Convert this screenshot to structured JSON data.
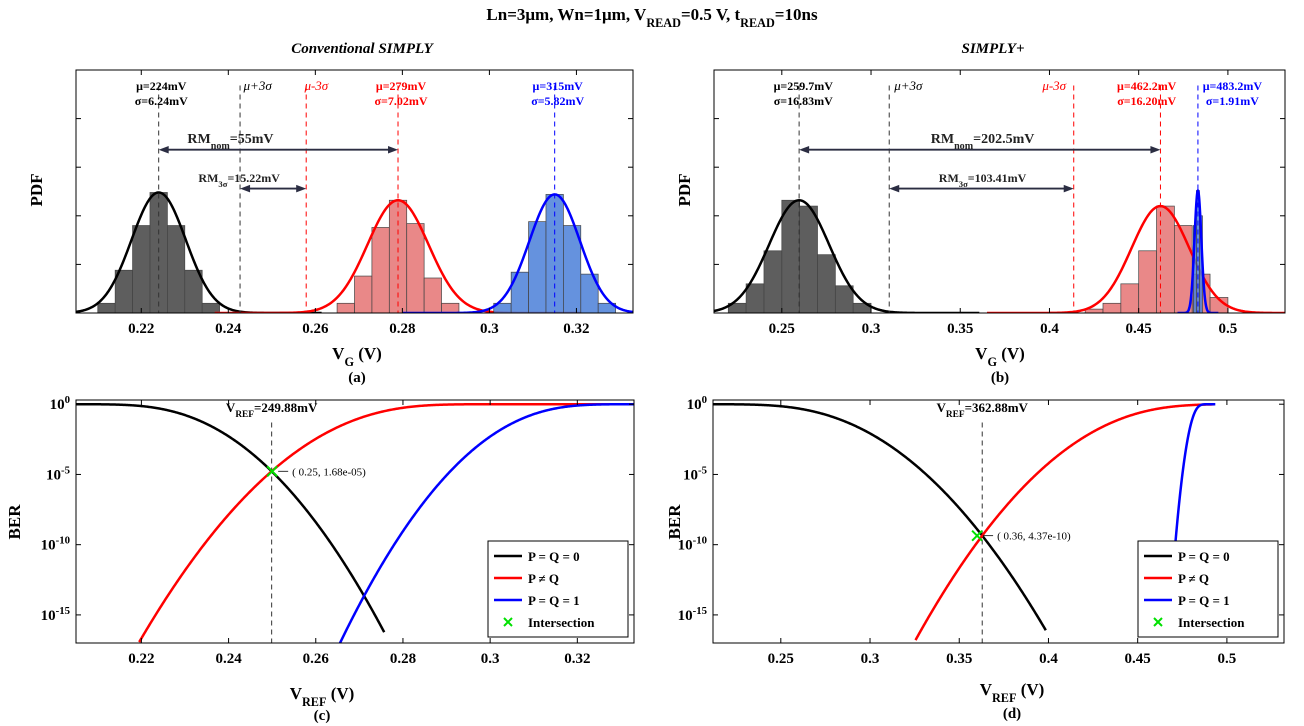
{
  "figure": {
    "main_title": {
      "parts": [
        {
          "t": "Ln=3μm, Wn=1μm,  V"
        },
        {
          "t": "READ",
          "sub": true
        },
        {
          "t": "=0.5 V, t"
        },
        {
          "t": "READ",
          "sub": true
        },
        {
          "t": "=10ns"
        }
      ]
    },
    "colors": {
      "black": "#000000",
      "red": "#ff0000",
      "blue": "#0000ff",
      "dark_hist": "#555555",
      "red_hist": "#e57373",
      "blue_hist": "#4a7fd8",
      "green": "#00e000",
      "arrow": "#2b2d42"
    }
  },
  "chart_data": [
    {
      "id": "a",
      "type": "histogram",
      "title": "Conventional SIMPLY",
      "panel_label": "(a)",
      "xlabel": {
        "parts": [
          {
            "t": "V"
          },
          {
            "t": "G",
            "sub": true
          },
          {
            "t": " (V)"
          }
        ]
      },
      "ylabel": "PDF",
      "xlim": [
        0.205,
        0.333
      ],
      "ylim": [
        0,
        1.25
      ],
      "xticks": [
        0.22,
        0.24,
        0.26,
        0.28,
        0.3,
        0.32
      ],
      "xtick_labels": [
        "0.22",
        "0.24",
        "0.26",
        "0.28",
        "0.3",
        "0.32"
      ],
      "yticks": [
        0.25,
        0.5,
        0.75,
        1.0
      ],
      "series": [
        {
          "color_key": "dark_hist",
          "mu": 0.224,
          "sigma": 0.00624,
          "x": [
            0.212,
            0.216,
            0.22,
            0.224,
            0.228,
            0.232,
            0.236
          ],
          "counts": [
            0.05,
            0.22,
            0.45,
            0.62,
            0.45,
            0.22,
            0.05
          ]
        },
        {
          "color_key": "red_hist",
          "mu": 0.279,
          "sigma": 0.00702,
          "x": [
            0.267,
            0.271,
            0.275,
            0.279,
            0.283,
            0.287,
            0.291
          ],
          "counts": [
            0.05,
            0.19,
            0.44,
            0.58,
            0.46,
            0.18,
            0.05
          ]
        },
        {
          "color_key": "blue_hist",
          "mu": 0.315,
          "sigma": 0.00582,
          "x": [
            0.303,
            0.307,
            0.311,
            0.315,
            0.319,
            0.323,
            0.327
          ],
          "counts": [
            0.05,
            0.21,
            0.47,
            0.61,
            0.45,
            0.2,
            0.05
          ]
        }
      ],
      "vlines": [
        {
          "x": 0.224,
          "color_key": "black",
          "label": "",
          "label_x": 0
        },
        {
          "x": 0.2427,
          "color_key": "black",
          "label": "μ+3σ",
          "label_x": 0.2435
        },
        {
          "x": 0.2579,
          "color_key": "red",
          "label": "μ-3σ",
          "label_x": 0.2575
        },
        {
          "x": 0.279,
          "color_key": "red",
          "label": "",
          "label_x": 0
        },
        {
          "x": 0.315,
          "color_key": "blue",
          "label": "",
          "label_x": 0
        }
      ],
      "stat_labels": [
        {
          "x": 0.2246,
          "color_key": "black",
          "mu": "μ=224mV",
          "sigma": "σ=6.24mV"
        },
        {
          "x": 0.2797,
          "color_key": "red",
          "mu": "μ=279mV",
          "sigma": "σ=7.02mV"
        },
        {
          "x": 0.3157,
          "color_key": "blue",
          "mu": "μ=315mV",
          "sigma": "σ=5.82mV"
        }
      ],
      "arrows": [
        {
          "x1": 0.224,
          "x2": 0.279,
          "y": 0.84,
          "label": {
            "parts": [
              {
                "t": "RM"
              },
              {
                "t": "nom",
                "sub": true
              },
              {
                "t": "=55mV"
              }
            ]
          },
          "label_x": 0.2405,
          "label_y": 0.875,
          "size": 14
        },
        {
          "x1": 0.2427,
          "x2": 0.2579,
          "y": 0.64,
          "label": {
            "parts": [
              {
                "t": "RM"
              },
              {
                "t": "3σ",
                "sub": true
              },
              {
                "t": "=15.22mV"
              }
            ]
          },
          "label_x": 0.2425,
          "label_y": 0.675,
          "size": 12
        }
      ]
    },
    {
      "id": "b",
      "type": "histogram",
      "title": "SIMPLY+",
      "panel_label": "(b)",
      "xlabel": {
        "parts": [
          {
            "t": "V"
          },
          {
            "t": "G",
            "sub": true
          },
          {
            "t": " (V)"
          }
        ]
      },
      "ylabel": "PDF",
      "xlim": [
        0.212,
        0.532
      ],
      "ylim": [
        0,
        1.25
      ],
      "xticks": [
        0.25,
        0.3,
        0.35,
        0.4,
        0.45,
        0.5
      ],
      "xtick_labels": [
        "0.25",
        "0.3",
        "0.35",
        "0.4",
        "0.45",
        "0.5"
      ],
      "yticks": [
        0.25,
        0.5,
        0.75,
        1.0
      ],
      "series": [
        {
          "color_key": "dark_hist",
          "mu": 0.2597,
          "sigma": 0.01683,
          "x": [
            0.225,
            0.235,
            0.245,
            0.255,
            0.265,
            0.275,
            0.285,
            0.295
          ],
          "counts": [
            0.05,
            0.15,
            0.32,
            0.58,
            0.55,
            0.3,
            0.14,
            0.05
          ]
        },
        {
          "color_key": "red_hist",
          "mu": 0.4622,
          "sigma": 0.0162,
          "x": [
            0.425,
            0.435,
            0.445,
            0.455,
            0.465,
            0.475,
            0.485,
            0.495
          ],
          "counts": [
            0.02,
            0.05,
            0.15,
            0.32,
            0.55,
            0.45,
            0.2,
            0.08
          ]
        },
        {
          "color_key": "blue_hist",
          "mu": 0.4832,
          "sigma": 0.00191,
          "x": [
            0.4815,
            0.4832,
            0.4849
          ],
          "counts": [
            0.45,
            0.63,
            0.5
          ]
        }
      ],
      "vlines": [
        {
          "x": 0.2597,
          "color_key": "black",
          "label": "",
          "label_x": 0
        },
        {
          "x": 0.3102,
          "color_key": "black",
          "label": "μ+3σ",
          "label_x": 0.313
        },
        {
          "x": 0.4136,
          "color_key": "red",
          "label": "μ-3σ",
          "label_x": 0.396
        },
        {
          "x": 0.4622,
          "color_key": "red",
          "label": "",
          "label_x": 0
        },
        {
          "x": 0.4832,
          "color_key": "blue",
          "label": "",
          "label_x": 0
        }
      ],
      "stat_labels": [
        {
          "x": 0.262,
          "color_key": "black",
          "mu": "μ=259.7mV",
          "sigma": "σ=16.83mV"
        },
        {
          "x": 0.4545,
          "color_key": "red",
          "mu": "μ=462.2mV",
          "sigma": "σ=16.20mV"
        },
        {
          "x": 0.5025,
          "color_key": "blue",
          "mu": "μ=483.2mV",
          "sigma": "σ=1.91mV"
        }
      ],
      "arrows": [
        {
          "x1": 0.2597,
          "x2": 0.4622,
          "y": 0.84,
          "label": {
            "parts": [
              {
                "t": "RM"
              },
              {
                "t": "nom",
                "sub": true
              },
              {
                "t": "=202.5mV"
              }
            ]
          },
          "label_x": 0.3625,
          "label_y": 0.875,
          "size": 14
        },
        {
          "x1": 0.3102,
          "x2": 0.4136,
          "y": 0.64,
          "label": {
            "parts": [
              {
                "t": "RM"
              },
              {
                "t": "3σ",
                "sub": true
              },
              {
                "t": "=103.41mV"
              }
            ]
          },
          "label_x": 0.3625,
          "label_y": 0.675,
          "size": 12
        }
      ]
    },
    {
      "id": "c",
      "type": "line",
      "panel_label": "(c)",
      "xlabel": {
        "parts": [
          {
            "t": "V"
          },
          {
            "t": "REF",
            "sub": true
          },
          {
            "t": " (V)"
          }
        ]
      },
      "ylabel": "BER",
      "yscale": "log",
      "xlim": [
        0.205,
        0.333
      ],
      "ylim_log10": [
        -17,
        0.3
      ],
      "xticks": [
        0.22,
        0.24,
        0.26,
        0.28,
        0.3,
        0.32
      ],
      "xtick_labels": [
        "0.22",
        "0.24",
        "0.26",
        "0.28",
        "0.3",
        "0.32"
      ],
      "yticks_log10": [
        0,
        -5,
        -10,
        -15
      ],
      "series": [
        {
          "name": "P = Q = 0",
          "color_key": "black",
          "mu": 0.224,
          "sigma": 0.00624,
          "tail": "upper",
          "x_min": 0.205,
          "x_max": 0.2757
        },
        {
          "name": "P ≠ Q",
          "color_key": "red",
          "mu": 0.279,
          "sigma": 0.00702,
          "tail": "lower",
          "x_min": 0.2195,
          "x_max": 0.333
        },
        {
          "name": "P = Q = 1",
          "color_key": "blue",
          "mu": 0.315,
          "sigma": 0.00582,
          "tail": "lower",
          "x_min": 0.2655,
          "x_max": 0.333
        }
      ],
      "vref": {
        "x": 0.24988,
        "label": {
          "parts": [
            {
              "t": "V"
            },
            {
              "t": "REF",
              "sub": true
            },
            {
              "t": "=249.88mV"
            }
          ]
        }
      },
      "intersection": {
        "x": 0.25,
        "y": 1.68e-05,
        "label": "(  0.25, 1.68e-05)"
      },
      "legend": [
        "P = Q = 0",
        "P ≠ Q",
        "P = Q = 1",
        "Intersection"
      ]
    },
    {
      "id": "d",
      "type": "line",
      "panel_label": "(d)",
      "xlabel": {
        "parts": [
          {
            "t": "V"
          },
          {
            "t": "REF",
            "sub": true
          },
          {
            "t": " (V)"
          }
        ]
      },
      "ylabel": "BER",
      "yscale": "log",
      "xlim": [
        0.212,
        0.532
      ],
      "ylim_log10": [
        -17,
        0.3
      ],
      "xticks": [
        0.25,
        0.3,
        0.35,
        0.4,
        0.45,
        0.5
      ],
      "xtick_labels": [
        "0.25",
        "0.3",
        "0.35",
        "0.4",
        "0.45",
        "0.5"
      ],
      "yticks_log10": [
        0,
        -5,
        -10,
        -15
      ],
      "series": [
        {
          "name": "P = Q = 0",
          "color_key": "black",
          "mu": 0.2597,
          "sigma": 0.01683,
          "tail": "upper",
          "x_min": 0.212,
          "x_max": 0.3985
        },
        {
          "name": "P ≠ Q",
          "color_key": "red",
          "mu": 0.4622,
          "sigma": 0.0162,
          "tail": "lower",
          "x_min": 0.3255,
          "x_max": 0.4925
        },
        {
          "name": "P = Q = 1",
          "color_key": "blue",
          "mu": 0.4832,
          "sigma": 0.00191,
          "tail": "lower",
          "x_min": 0.4675,
          "x_max": 0.4935
        }
      ],
      "vref": {
        "x": 0.36288,
        "label": {
          "parts": [
            {
              "t": "V"
            },
            {
              "t": "REF",
              "sub": true
            },
            {
              "t": "=362.88mV"
            }
          ]
        }
      },
      "intersection": {
        "x": 0.36,
        "y": 4.37e-10,
        "label": "(  0.36, 4.37e-10)"
      },
      "legend": [
        "P = Q = 0",
        "P ≠ Q",
        "P = Q = 1",
        "Intersection"
      ]
    }
  ]
}
